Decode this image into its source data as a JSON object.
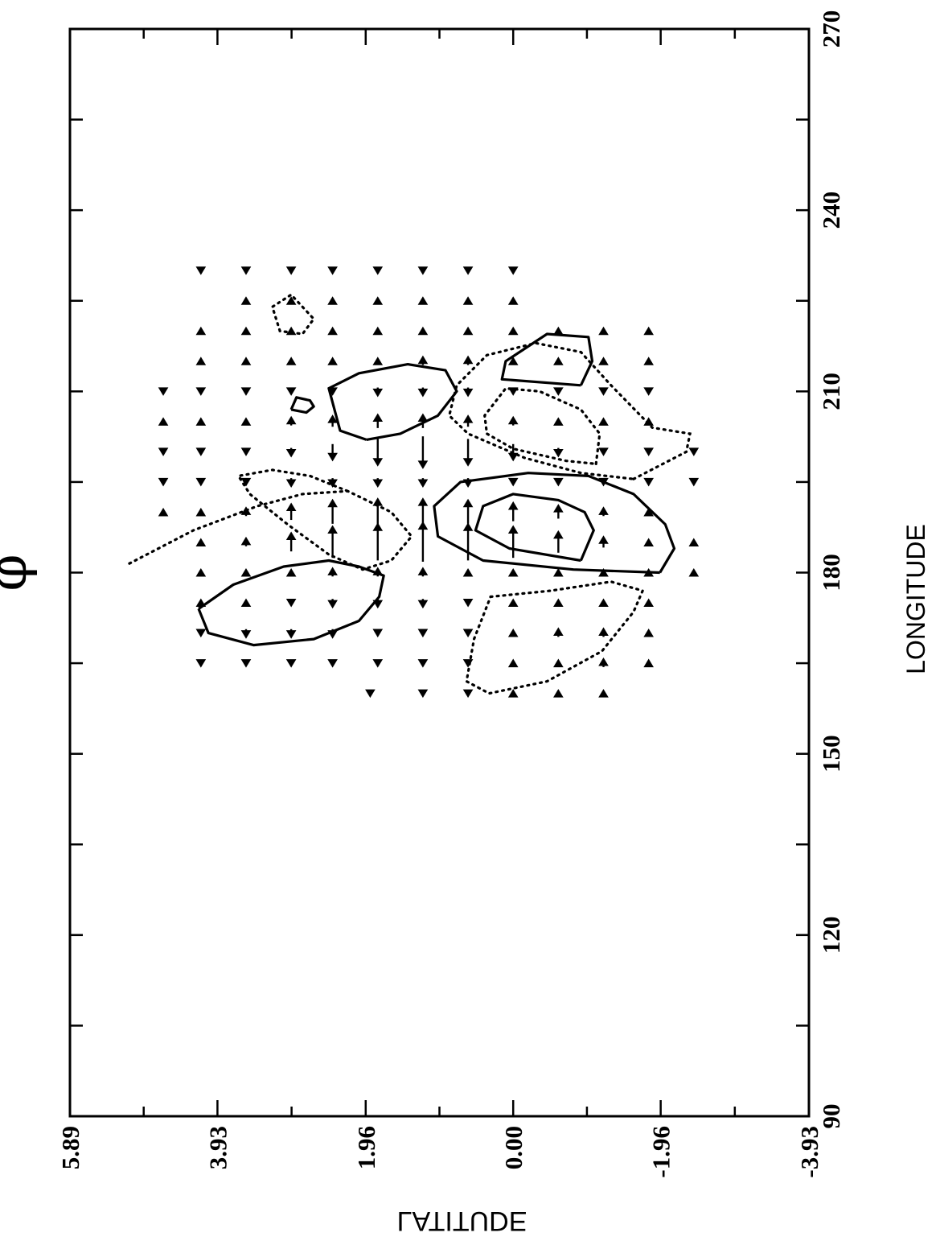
{
  "chart_data": {
    "type": "contour-vector",
    "title": "φ",
    "xlabel": "LONGITUDE",
    "ylabel": "LATITUDE",
    "xlim": [
      90,
      270
    ],
    "ylim": [
      -3.93,
      5.89
    ],
    "x_ticks": [
      "90",
      "120",
      "150",
      "180",
      "210",
      "240",
      "270"
    ],
    "y_ticks": [
      "5.89",
      "3.93",
      "1.96",
      "0.00",
      "-1.96",
      "-3.93"
    ],
    "contours": [
      {
        "style": "solid",
        "points": [
          [
            174,
            4.18
          ],
          [
            178,
            3.72
          ],
          [
            181,
            3.05
          ],
          [
            182,
            2.45
          ],
          [
            181,
            2.05
          ],
          [
            179.5,
            1.72
          ],
          [
            176,
            1.78
          ],
          [
            172,
            2.05
          ],
          [
            169,
            2.65
          ],
          [
            168,
            3.45
          ],
          [
            170,
            4.05
          ],
          [
            174,
            4.18
          ]
        ]
      },
      {
        "style": "dotted",
        "points": [
          [
            181.5,
            5.1
          ],
          [
            187,
            4.25
          ],
          [
            191,
            3.4
          ],
          [
            193,
            2.8
          ],
          [
            193.5,
            2.2
          ],
          [
            190,
            1.62
          ],
          [
            186,
            1.35
          ],
          [
            182,
            1.62
          ],
          [
            180.5,
            2.0
          ],
          [
            183,
            2.45
          ],
          [
            188,
            3.0
          ],
          [
            193,
            3.5
          ],
          [
            196,
            3.65
          ],
          [
            197,
            3.2
          ],
          [
            196,
            2.7
          ],
          [
            193.5,
            2.2
          ]
        ]
      },
      {
        "style": "dotted",
        "points": [
          [
            176,
            0.3
          ],
          [
            177,
            -0.5
          ],
          [
            178.5,
            -1.3
          ],
          [
            177,
            -1.72
          ],
          [
            173.5,
            -1.6
          ],
          [
            167,
            -1.18
          ],
          [
            162,
            -0.45
          ],
          [
            160,
            0.32
          ],
          [
            162,
            0.62
          ],
          [
            169,
            0.52
          ],
          [
            176,
            0.3
          ]
        ]
      },
      {
        "style": "solid",
        "points": [
          [
            180,
            -1.95
          ],
          [
            184,
            -2.14
          ],
          [
            188,
            -2.02
          ],
          [
            193,
            -1.6
          ],
          [
            196,
            -1.0
          ],
          [
            196.5,
            -0.2
          ],
          [
            195,
            0.7
          ],
          [
            191,
            1.05
          ],
          [
            186,
            1.0
          ],
          [
            182,
            0.4
          ],
          [
            180.5,
            -0.8
          ],
          [
            180,
            -1.95
          ]
        ]
      },
      {
        "style": "solid",
        "points": [
          [
            182,
            -0.9
          ],
          [
            187,
            -1.07
          ],
          [
            190,
            -0.95
          ],
          [
            192,
            -0.6
          ],
          [
            193,
            0.0
          ],
          [
            191,
            0.4
          ],
          [
            187,
            0.5
          ],
          [
            184,
            0.05
          ],
          [
            182,
            -0.9
          ]
        ]
      },
      {
        "style": "dotted",
        "points": [
          [
            195.5,
            -1.6
          ],
          [
            200,
            -2.3
          ],
          [
            203,
            -2.35
          ],
          [
            204,
            -1.85
          ],
          [
            211,
            -1.3
          ],
          [
            216.5,
            -0.9
          ],
          [
            218,
            -0.3
          ],
          [
            216,
            0.35
          ],
          [
            211,
            0.75
          ],
          [
            206,
            0.85
          ],
          [
            203,
            0.6
          ],
          [
            199,
            -0.15
          ],
          [
            196.5,
            -0.9
          ],
          [
            195.5,
            -1.6
          ]
        ]
      },
      {
        "style": "dotted",
        "points": [
          [
            198,
            -1.1
          ],
          [
            203,
            -1.15
          ],
          [
            207,
            -0.9
          ],
          [
            210,
            -0.35
          ],
          [
            210.5,
            0.1
          ],
          [
            206,
            0.38
          ],
          [
            203,
            0.35
          ],
          [
            200.5,
            0.0
          ],
          [
            198.5,
            -0.7
          ],
          [
            198,
            -1.1
          ]
        ]
      },
      {
        "style": "solid",
        "points": [
          [
            202,
            1.95
          ],
          [
            203.5,
            2.3
          ],
          [
            210.5,
            2.45
          ],
          [
            213,
            2.05
          ],
          [
            214.5,
            1.4
          ],
          [
            213.5,
            0.9
          ],
          [
            210,
            0.75
          ],
          [
            206,
            1.0
          ],
          [
            203,
            1.5
          ],
          [
            202,
            1.95
          ]
        ]
      },
      {
        "style": "solid",
        "points": [
          [
            207,
            2.95
          ],
          [
            209,
            2.88
          ],
          [
            208.5,
            2.7
          ],
          [
            207.5,
            2.65
          ],
          [
            206.5,
            2.75
          ],
          [
            207,
            2.95
          ]
        ]
      },
      {
        "style": "solid",
        "points": [
          [
            211,
            -0.9
          ],
          [
            215,
            -1.05
          ],
          [
            219,
            -1.0
          ],
          [
            219.5,
            -0.45
          ],
          [
            215,
            0.1
          ],
          [
            212,
            0.15
          ],
          [
            211,
            -0.9
          ]
        ]
      },
      {
        "style": "dotted",
        "points": [
          [
            220,
            3.1
          ],
          [
            224,
            3.2
          ],
          [
            226,
            2.95
          ],
          [
            222,
            2.65
          ],
          [
            219.5,
            2.8
          ],
          [
            220,
            3.1
          ]
        ]
      }
    ],
    "vectors_note": "Vector field u,v shown as arrows on grid between longitude 160-230, latitude -2.6 to 4.7",
    "vectors": [
      [
        160,
        1.9,
        -0.2,
        0.0
      ],
      [
        160,
        1.2,
        -0.2,
        0.0
      ],
      [
        160,
        0.6,
        -0.2,
        0.0
      ],
      [
        160,
        0.0,
        0.2,
        0.0
      ],
      [
        160,
        -0.6,
        0.2,
        0.0
      ],
      [
        160,
        -1.2,
        0.2,
        0.0
      ],
      [
        165,
        4.15,
        -0.2,
        0.0
      ],
      [
        165,
        3.55,
        -0.2,
        0.0
      ],
      [
        165,
        2.95,
        -0.2,
        0.0
      ],
      [
        165,
        2.4,
        -0.2,
        0.0
      ],
      [
        165,
        1.8,
        -0.2,
        0.0
      ],
      [
        165,
        1.2,
        -0.2,
        0.0
      ],
      [
        165,
        0.6,
        -0.2,
        0.0
      ],
      [
        165,
        0.0,
        0.2,
        0.0
      ],
      [
        165,
        -0.6,
        0.2,
        0.0
      ],
      [
        165,
        -1.2,
        0.3,
        0.0
      ],
      [
        165,
        -1.8,
        0.2,
        0.0
      ],
      [
        170,
        4.15,
        -0.2,
        0.0
      ],
      [
        170,
        3.55,
        -0.3,
        0.0
      ],
      [
        170,
        2.95,
        -0.3,
        0.0
      ],
      [
        170,
        2.4,
        -0.3,
        0.0
      ],
      [
        170,
        1.8,
        -0.2,
        0.0
      ],
      [
        170,
        1.2,
        -0.2,
        0.0
      ],
      [
        170,
        0.6,
        -0.2,
        0.0
      ],
      [
        170,
        0.0,
        0.2,
        0.0
      ],
      [
        170,
        -0.6,
        0.3,
        0.0
      ],
      [
        170,
        -1.2,
        0.3,
        0.0
      ],
      [
        170,
        -1.8,
        0.2,
        0.0
      ],
      [
        175,
        4.15,
        0.2,
        0.0
      ],
      [
        175,
        3.55,
        0.2,
        0.0
      ],
      [
        175,
        2.95,
        -0.2,
        0.0
      ],
      [
        175,
        2.4,
        -0.3,
        0.0
      ],
      [
        175,
        1.8,
        -0.3,
        0.0
      ],
      [
        175,
        1.2,
        -0.3,
        0.0
      ],
      [
        175,
        0.6,
        -0.2,
        0.0
      ],
      [
        175,
        0.0,
        0.2,
        0.0
      ],
      [
        175,
        -0.6,
        0.2,
        0.0
      ],
      [
        175,
        -1.2,
        0.2,
        0.0
      ],
      [
        175,
        -1.8,
        0.2,
        0.0
      ],
      [
        180,
        4.15,
        0.2,
        0.0
      ],
      [
        180,
        3.55,
        0.2,
        0.0
      ],
      [
        180,
        2.95,
        0.2,
        0.0
      ],
      [
        180,
        2.4,
        0.3,
        0.0
      ],
      [
        180,
        1.8,
        0.3,
        0.0
      ],
      [
        180,
        1.2,
        0.3,
        0.0
      ],
      [
        180,
        0.6,
        0.2,
        0.0
      ],
      [
        180,
        0.0,
        0.2,
        0.0
      ],
      [
        180,
        -0.6,
        0.2,
        0.0
      ],
      [
        180,
        -1.2,
        0.2,
        0.0
      ],
      [
        180,
        -1.8,
        0.2,
        0.0
      ],
      [
        180,
        -2.4,
        0.2,
        0.0
      ],
      [
        185,
        4.15,
        0.2,
        0.0
      ],
      [
        185,
        3.55,
        0.3,
        0.0
      ],
      [
        185,
        2.95,
        0.7,
        0.0
      ],
      [
        185,
        2.4,
        1.2,
        0.0
      ],
      [
        185,
        1.8,
        1.4,
        0.0
      ],
      [
        185,
        1.2,
        1.5,
        0.0
      ],
      [
        185,
        0.6,
        1.4,
        0.0
      ],
      [
        185,
        0.0,
        1.2,
        0.0
      ],
      [
        185,
        -0.6,
        0.8,
        0.0
      ],
      [
        185,
        -1.2,
        0.4,
        0.0
      ],
      [
        185,
        -1.8,
        0.2,
        0.0
      ],
      [
        185,
        -2.4,
        0.2,
        0.0
      ],
      [
        190,
        4.65,
        0.2,
        0.0
      ],
      [
        190,
        4.15,
        0.2,
        0.0
      ],
      [
        190,
        3.55,
        0.3,
        0.0
      ],
      [
        190,
        2.95,
        0.6,
        0.0
      ],
      [
        190,
        2.4,
        0.9,
        0.0
      ],
      [
        190,
        1.8,
        1.0,
        0.0
      ],
      [
        190,
        1.2,
        1.0,
        0.0
      ],
      [
        190,
        0.6,
        0.9,
        0.0
      ],
      [
        190,
        0.0,
        0.7,
        0.0
      ],
      [
        190,
        -0.6,
        0.5,
        0.0
      ],
      [
        190,
        -1.2,
        0.3,
        0.0
      ],
      [
        190,
        -1.8,
        0.2,
        0.0
      ],
      [
        195,
        4.65,
        -0.2,
        0.0
      ],
      [
        195,
        4.15,
        -0.2,
        0.0
      ],
      [
        195,
        3.55,
        -0.2,
        0.0
      ],
      [
        195,
        2.95,
        -0.3,
        0.0
      ],
      [
        195,
        2.4,
        -0.3,
        0.0
      ],
      [
        195,
        1.8,
        -0.3,
        0.0
      ],
      [
        195,
        1.2,
        -0.3,
        0.0
      ],
      [
        195,
        0.6,
        -0.3,
        0.0
      ],
      [
        195,
        0.0,
        -0.2,
        0.0
      ],
      [
        195,
        -0.6,
        -0.2,
        0.0
      ],
      [
        195,
        -1.2,
        -0.2,
        0.0
      ],
      [
        195,
        -1.8,
        -0.2,
        0.0
      ],
      [
        195,
        -2.4,
        -0.2,
        0.0
      ],
      [
        200,
        4.65,
        -0.2,
        0.0
      ],
      [
        200,
        4.15,
        -0.2,
        0.0
      ],
      [
        200,
        3.55,
        -0.2,
        0.0
      ],
      [
        200,
        2.95,
        -0.3,
        0.0
      ],
      [
        200,
        2.4,
        -0.6,
        0.0
      ],
      [
        200,
        1.8,
        -1.0,
        0.0
      ],
      [
        200,
        1.2,
        -1.2,
        0.0
      ],
      [
        200,
        0.6,
        -1.0,
        0.0
      ],
      [
        200,
        0.0,
        -0.6,
        0.0
      ],
      [
        200,
        -0.6,
        -0.3,
        0.0
      ],
      [
        200,
        -1.2,
        -0.2,
        0.0
      ],
      [
        200,
        -1.8,
        -0.2,
        0.0
      ],
      [
        200,
        -2.4,
        -0.2,
        0.0
      ],
      [
        205,
        4.65,
        0.2,
        0.0
      ],
      [
        205,
        4.15,
        0.2,
        0.0
      ],
      [
        205,
        3.55,
        0.2,
        0.0
      ],
      [
        205,
        2.95,
        0.3,
        0.0
      ],
      [
        205,
        2.4,
        0.4,
        0.0
      ],
      [
        205,
        1.8,
        0.5,
        0.0
      ],
      [
        205,
        1.2,
        0.5,
        0.0
      ],
      [
        205,
        0.6,
        0.4,
        0.0
      ],
      [
        205,
        0.0,
        0.3,
        0.0
      ],
      [
        205,
        -0.6,
        0.2,
        0.0
      ],
      [
        205,
        -1.2,
        0.2,
        0.0
      ],
      [
        205,
        -1.8,
        0.2,
        0.0
      ],
      [
        210,
        4.65,
        -0.2,
        0.0
      ],
      [
        210,
        4.15,
        -0.2,
        0.0
      ],
      [
        210,
        3.55,
        -0.2,
        0.0
      ],
      [
        210,
        2.95,
        -0.2,
        0.0
      ],
      [
        210,
        2.4,
        -0.2,
        0.0
      ],
      [
        210,
        1.8,
        -0.3,
        0.0
      ],
      [
        210,
        1.2,
        -0.3,
        0.0
      ],
      [
        210,
        0.6,
        -0.3,
        0.0
      ],
      [
        210,
        0.0,
        -0.2,
        0.0
      ],
      [
        210,
        -0.6,
        -0.2,
        0.0
      ],
      [
        210,
        -1.2,
        -0.2,
        0.0
      ],
      [
        210,
        -1.8,
        -0.2,
        0.0
      ],
      [
        215,
        4.15,
        0.2,
        0.0
      ],
      [
        215,
        3.55,
        0.2,
        0.0
      ],
      [
        215,
        2.95,
        0.2,
        0.0
      ],
      [
        215,
        2.4,
        0.2,
        0.0
      ],
      [
        215,
        1.8,
        0.2,
        0.0
      ],
      [
        215,
        1.2,
        0.3,
        0.0
      ],
      [
        215,
        0.6,
        0.3,
        0.0
      ],
      [
        215,
        0.0,
        0.2,
        0.0
      ],
      [
        215,
        -0.6,
        0.2,
        0.0
      ],
      [
        215,
        -1.2,
        0.2,
        0.0
      ],
      [
        215,
        -1.8,
        0.2,
        0.0
      ],
      [
        220,
        4.15,
        0.2,
        0.0
      ],
      [
        220,
        3.55,
        0.2,
        0.0
      ],
      [
        220,
        2.95,
        0.2,
        0.0
      ],
      [
        220,
        2.4,
        0.2,
        0.0
      ],
      [
        220,
        1.8,
        0.2,
        0.0
      ],
      [
        220,
        1.2,
        0.2,
        0.0
      ],
      [
        220,
        0.6,
        0.2,
        0.0
      ],
      [
        220,
        0.0,
        0.2,
        0.0
      ],
      [
        220,
        -0.6,
        0.2,
        0.0
      ],
      [
        220,
        -1.2,
        0.2,
        0.0
      ],
      [
        220,
        -1.8,
        0.2,
        0.0
      ],
      [
        225,
        3.55,
        0.2,
        0.0
      ],
      [
        225,
        2.95,
        0.2,
        0.0
      ],
      [
        225,
        2.4,
        0.2,
        0.0
      ],
      [
        225,
        1.8,
        0.2,
        0.0
      ],
      [
        225,
        1.2,
        0.2,
        0.0
      ],
      [
        225,
        0.6,
        0.2,
        0.0
      ],
      [
        225,
        0.0,
        0.2,
        0.0
      ],
      [
        230,
        4.15,
        -0.2,
        0.0
      ],
      [
        230,
        3.55,
        -0.2,
        0.0
      ],
      [
        230,
        2.95,
        -0.2,
        0.0
      ],
      [
        230,
        2.4,
        -0.2,
        0.0
      ],
      [
        230,
        1.8,
        -0.2,
        0.0
      ],
      [
        230,
        1.2,
        -0.2,
        0.0
      ],
      [
        230,
        0.6,
        -0.2,
        0.0
      ],
      [
        230,
        0.0,
        -0.2,
        0.0
      ]
    ],
    "grid": false
  }
}
